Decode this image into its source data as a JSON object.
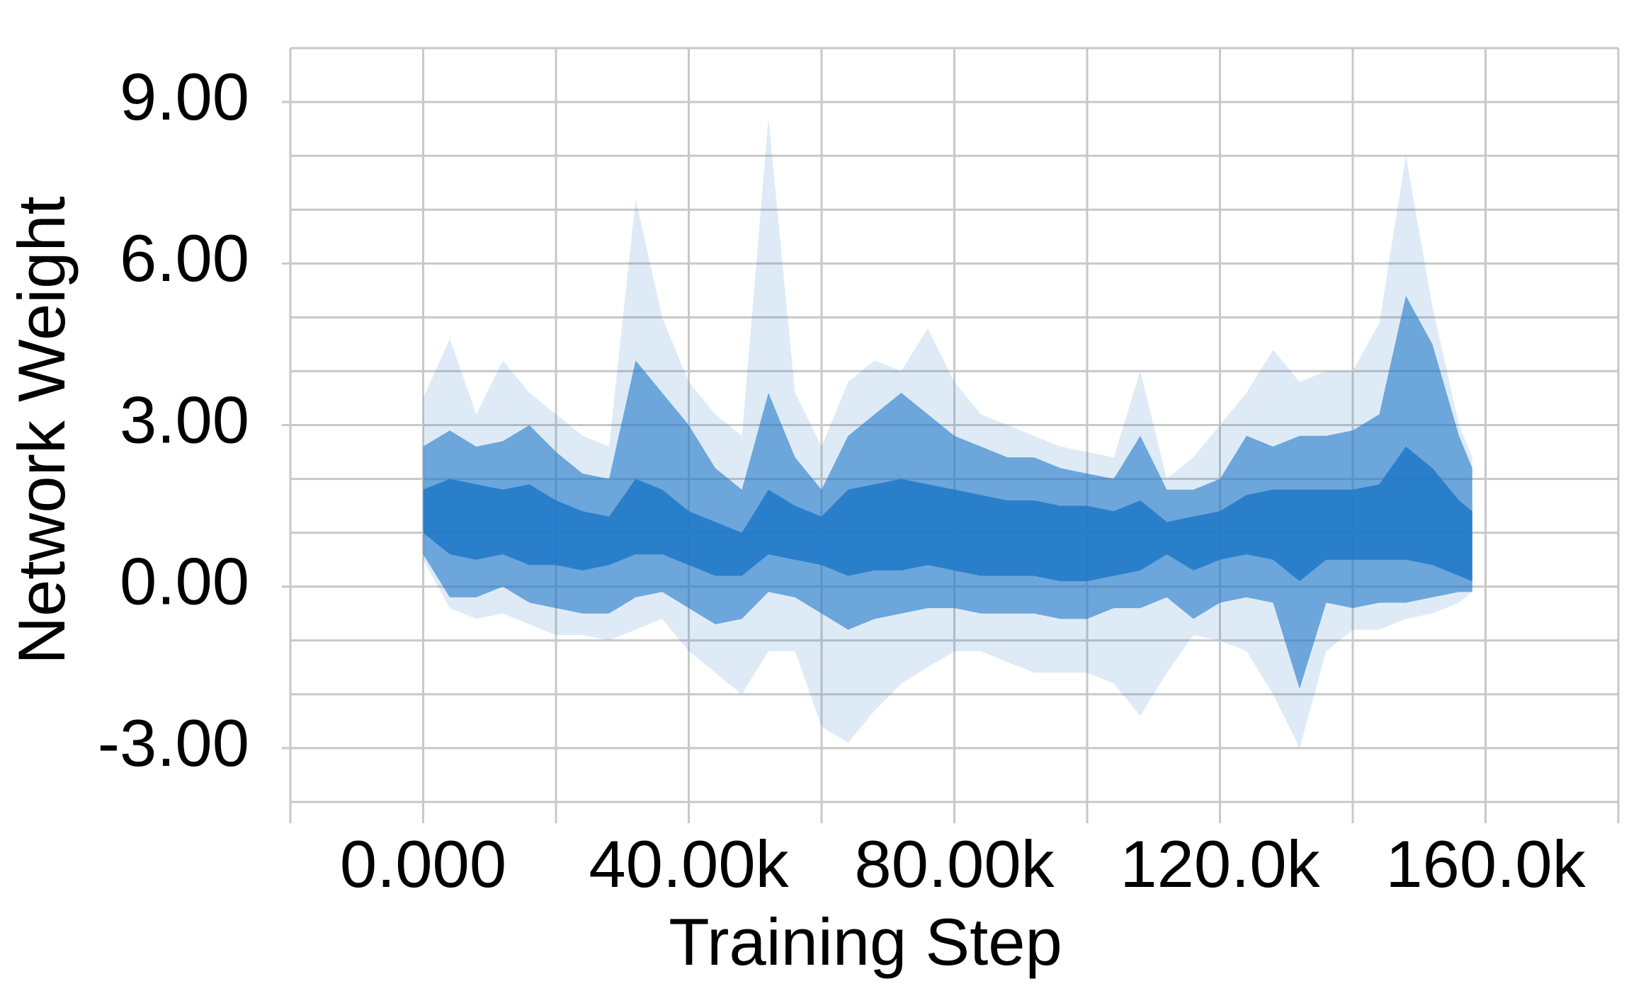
{
  "chart_data": {
    "type": "band",
    "xlabel": "Training Step",
    "ylabel": "Network Weight",
    "xlim": [
      -20000,
      180000
    ],
    "ylim": [
      -4,
      10
    ],
    "xticks": [
      {
        "value": 0,
        "label": "0.000"
      },
      {
        "value": 40000,
        "label": "40.00k"
      },
      {
        "value": 80000,
        "label": "80.00k"
      },
      {
        "value": 120000,
        "label": "120.0k"
      },
      {
        "value": 160000,
        "label": "160.0k"
      }
    ],
    "yticks": [
      {
        "value": 9,
        "label": "9.00"
      },
      {
        "value": 6,
        "label": "6.00"
      },
      {
        "value": 3,
        "label": "3.00"
      },
      {
        "value": 0,
        "label": "0.00"
      },
      {
        "value": -3,
        "label": "-3.00"
      }
    ],
    "xgrid": [
      -20000,
      0,
      20000,
      40000,
      60000,
      80000,
      100000,
      120000,
      140000,
      160000,
      180000
    ],
    "ygrid": [
      -4,
      -3,
      -2,
      -1,
      0,
      1,
      2,
      3,
      4,
      5,
      6,
      7,
      8,
      9,
      10
    ],
    "grid": true,
    "x": [
      0,
      4000,
      8000,
      12000,
      16000,
      20000,
      24000,
      28000,
      32000,
      36000,
      40000,
      44000,
      48000,
      52000,
      56000,
      60000,
      64000,
      68000,
      72000,
      76000,
      80000,
      84000,
      88000,
      92000,
      96000,
      100000,
      104000,
      108000,
      112000,
      116000,
      120000,
      124000,
      128000,
      132000,
      136000,
      140000,
      144000,
      148000,
      152000,
      156000,
      158000
    ],
    "bands": [
      {
        "color": "#1f78c8",
        "opacity": 0.15,
        "upper": [
          3.5,
          4.6,
          3.2,
          4.2,
          3.6,
          3.2,
          2.8,
          2.6,
          7.2,
          5.0,
          3.8,
          3.2,
          2.8,
          8.7,
          3.6,
          2.6,
          3.8,
          4.2,
          4.0,
          4.8,
          3.8,
          3.2,
          3.0,
          2.8,
          2.6,
          2.5,
          2.4,
          4.0,
          2.0,
          2.4,
          3.0,
          3.6,
          4.4,
          3.8,
          4.0,
          4.0,
          4.9,
          8.0,
          5.2,
          3.0,
          2.4
        ],
        "lower": [
          0.5,
          -0.4,
          -0.6,
          -0.5,
          -0.7,
          -0.9,
          -0.9,
          -1.0,
          -0.8,
          -0.6,
          -1.2,
          -1.6,
          -2.0,
          -1.2,
          -1.2,
          -2.6,
          -2.9,
          -2.3,
          -1.8,
          -1.5,
          -1.2,
          -1.2,
          -1.4,
          -1.6,
          -1.6,
          -1.6,
          -1.8,
          -2.4,
          -1.6,
          -0.9,
          -1.0,
          -1.2,
          -2.0,
          -3.0,
          -1.2,
          -0.8,
          -0.8,
          -0.6,
          -0.5,
          -0.3,
          -0.1
        ]
      },
      {
        "color": "#1f78c8",
        "opacity": 0.6,
        "upper": [
          2.6,
          2.9,
          2.6,
          2.7,
          3.0,
          2.5,
          2.1,
          2.0,
          4.2,
          3.6,
          3.0,
          2.2,
          1.8,
          3.6,
          2.4,
          1.8,
          2.8,
          3.2,
          3.6,
          3.2,
          2.8,
          2.6,
          2.4,
          2.4,
          2.2,
          2.1,
          2.0,
          2.8,
          1.8,
          1.8,
          2.0,
          2.8,
          2.6,
          2.8,
          2.8,
          2.9,
          3.2,
          5.4,
          4.5,
          2.8,
          2.2
        ],
        "lower": [
          0.6,
          -0.2,
          -0.2,
          0.0,
          -0.3,
          -0.4,
          -0.5,
          -0.5,
          -0.2,
          -0.1,
          -0.4,
          -0.7,
          -0.6,
          -0.1,
          -0.2,
          -0.5,
          -0.8,
          -0.6,
          -0.5,
          -0.4,
          -0.4,
          -0.5,
          -0.5,
          -0.5,
          -0.6,
          -0.6,
          -0.4,
          -0.4,
          -0.2,
          -0.6,
          -0.3,
          -0.2,
          -0.3,
          -1.9,
          -0.3,
          -0.4,
          -0.3,
          -0.3,
          -0.2,
          -0.1,
          -0.1
        ]
      },
      {
        "color": "#1f78c8",
        "opacity": 0.85,
        "upper": [
          1.8,
          2.0,
          1.9,
          1.8,
          1.9,
          1.6,
          1.4,
          1.3,
          2.0,
          1.8,
          1.4,
          1.2,
          1.0,
          1.8,
          1.5,
          1.3,
          1.8,
          1.9,
          2.0,
          1.9,
          1.8,
          1.7,
          1.6,
          1.6,
          1.5,
          1.5,
          1.4,
          1.6,
          1.2,
          1.3,
          1.4,
          1.7,
          1.8,
          1.8,
          1.8,
          1.8,
          1.9,
          2.6,
          2.2,
          1.6,
          1.4
        ],
        "lower": [
          1.0,
          0.6,
          0.5,
          0.6,
          0.4,
          0.4,
          0.3,
          0.4,
          0.6,
          0.6,
          0.4,
          0.2,
          0.2,
          0.6,
          0.5,
          0.4,
          0.2,
          0.3,
          0.3,
          0.4,
          0.3,
          0.2,
          0.2,
          0.2,
          0.1,
          0.1,
          0.2,
          0.3,
          0.6,
          0.3,
          0.5,
          0.6,
          0.5,
          0.1,
          0.5,
          0.5,
          0.5,
          0.5,
          0.4,
          0.2,
          0.1
        ]
      }
    ]
  }
}
